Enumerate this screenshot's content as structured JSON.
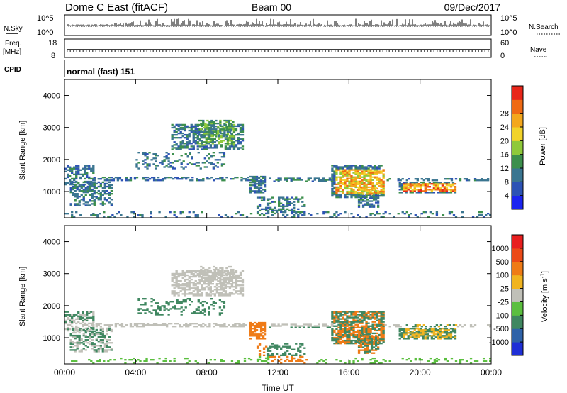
{
  "header": {
    "station": "Dome C East (fitACF)",
    "beam": "Beam 00",
    "date": "09/Dec/2017"
  },
  "noise_panel": {
    "left_label": "N.Sky",
    "right_label": "N.Search",
    "left_ticks": [
      "10^5",
      "10^0"
    ],
    "right_ticks": [
      "10^5",
      "10^0"
    ]
  },
  "freq_panel": {
    "left_label_1": "Freq.",
    "left_label_2": "[MHz]",
    "right_label": "Nave",
    "left_ticks": [
      "18",
      "8"
    ],
    "right_ticks": [
      "60",
      "0"
    ]
  },
  "cpid": {
    "label": "CPID",
    "text": "normal (fast) 151"
  },
  "chart_data": [
    {
      "type": "heatmap",
      "name": "power",
      "ylabel": "Slant Range [km]",
      "xlabel": "",
      "ylim": [
        180,
        4500
      ],
      "y_ticks": [
        "1000",
        "2000",
        "3000",
        "4000"
      ],
      "colorbar_label": "Power [dB]",
      "colorbar_ticks": [
        "4",
        "8",
        "12",
        "16",
        "20",
        "24",
        "28"
      ],
      "colorbar_colors": [
        "#1c24f0",
        "#2c52b5",
        "#3a7590",
        "#3c8f4c",
        "#8fc93a",
        "#f2d32a",
        "#f4a71c",
        "#ef6a14",
        "#e8261a"
      ]
    },
    {
      "type": "heatmap",
      "name": "velocity",
      "ylabel": "Slant Range [km]",
      "xlabel": "Time UT",
      "ylim": [
        180,
        4500
      ],
      "y_ticks": [
        "1000",
        "2000",
        "3000",
        "4000"
      ],
      "x_ticks": [
        "00:00",
        "04:00",
        "08:00",
        "12:00",
        "16:00",
        "20:00",
        "00:00"
      ],
      "colorbar_label": "Velocity [m s",
      "colorbar_label_sup": "-1",
      "colorbar_label_end": "]",
      "colorbar_ticks": [
        "1000",
        "500",
        "100",
        "25",
        "-25",
        "-100",
        "-500",
        "-1000"
      ],
      "colorbar_colors": [
        "#1f2fd6",
        "#2f62a8",
        "#3f8760",
        "#5bbf3f",
        "#c0c0b8",
        "#f1b420",
        "#ef7b16",
        "#eb4a18",
        "#e81e1e"
      ]
    }
  ]
}
